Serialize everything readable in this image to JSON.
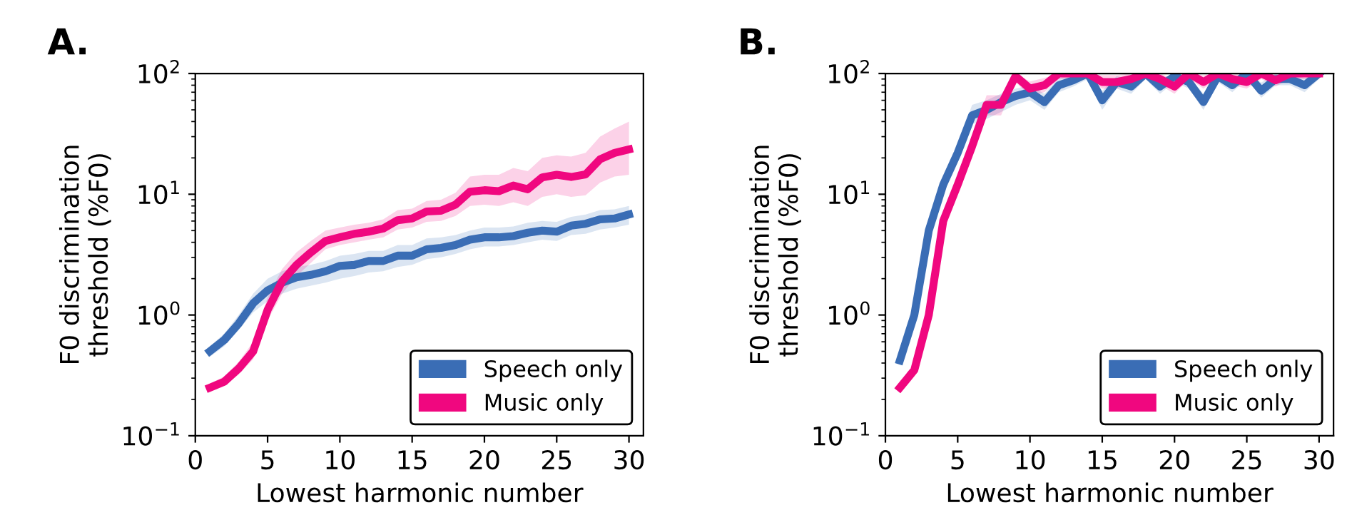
{
  "chart_data": [
    {
      "type": "line",
      "title": "A.",
      "xlabel": "Lowest harmonic number",
      "ylabel": "F0 discrimination\nthreshold (%F0)",
      "log": "y",
      "xlim": [
        0,
        31
      ],
      "ylim": [
        0.1,
        100
      ],
      "xticks": [
        0,
        5,
        10,
        15,
        20,
        25,
        30
      ],
      "yticks": [
        {
          "value": 0.1,
          "label": "10$^{−1}$"
        },
        {
          "value": 1,
          "label": "10$^{0}$"
        },
        {
          "value": 10,
          "label": "10$^{1}$"
        },
        {
          "value": 100,
          "label": "10$^{2}$"
        }
      ],
      "grid": false,
      "legend": "bottom right",
      "marker": "none",
      "line_style": "solid",
      "x": [
        1,
        2,
        3,
        4,
        5,
        6,
        7,
        8,
        9,
        10,
        11,
        12,
        13,
        14,
        15,
        16,
        17,
        18,
        19,
        20,
        21,
        22,
        23,
        24,
        25,
        26,
        27,
        28,
        29,
        30
      ],
      "series": [
        {
          "name": "Speech only",
          "color": "#3a6db5",
          "values": [
            0.5,
            0.62,
            0.85,
            1.25,
            1.6,
            1.85,
            2.05,
            2.15,
            2.3,
            2.55,
            2.6,
            2.8,
            2.8,
            3.1,
            3.1,
            3.5,
            3.6,
            3.8,
            4.2,
            4.4,
            4.4,
            4.5,
            4.8,
            5.0,
            4.9,
            5.5,
            5.7,
            6.2,
            6.3,
            6.8
          ],
          "lower": [
            0.45,
            0.55,
            0.75,
            1.05,
            1.3,
            1.5,
            1.65,
            1.75,
            1.85,
            2.0,
            2.1,
            2.25,
            2.3,
            2.5,
            2.6,
            2.9,
            3.0,
            3.2,
            3.5,
            3.7,
            3.7,
            3.8,
            4.0,
            4.2,
            4.1,
            4.6,
            4.7,
            5.1,
            5.3,
            5.6
          ],
          "upper": [
            0.55,
            0.7,
            1.0,
            1.5,
            2.0,
            2.3,
            2.5,
            2.6,
            2.8,
            3.1,
            3.2,
            3.4,
            3.4,
            3.8,
            3.8,
            4.3,
            4.4,
            4.6,
            5.0,
            5.3,
            5.3,
            5.4,
            5.8,
            6.0,
            5.9,
            6.5,
            6.8,
            7.4,
            7.5,
            8.0
          ]
        },
        {
          "name": "Music only",
          "color": "#f0077f",
          "values": [
            0.25,
            0.28,
            0.36,
            0.5,
            1.1,
            1.9,
            2.6,
            3.3,
            4.1,
            4.4,
            4.7,
            4.9,
            5.2,
            6.1,
            6.3,
            7.2,
            7.3,
            8.2,
            10.5,
            10.8,
            10.6,
            11.8,
            11.0,
            13.8,
            14.5,
            13.9,
            14.6,
            19.5,
            22,
            23.5
          ],
          "lower": [
            0.23,
            0.26,
            0.32,
            0.43,
            0.9,
            1.5,
            2.1,
            2.7,
            3.5,
            3.8,
            4.0,
            4.2,
            4.4,
            5.1,
            5.3,
            5.9,
            6.0,
            6.6,
            8.0,
            8.2,
            8.0,
            8.6,
            8.0,
            9.5,
            10.0,
            9.5,
            9.8,
            12.5,
            14.0,
            14.5
          ],
          "upper": [
            0.27,
            0.31,
            0.41,
            0.6,
            1.4,
            2.4,
            3.3,
            4.1,
            5.0,
            5.3,
            5.6,
            5.8,
            6.2,
            7.4,
            7.6,
            8.8,
            9.0,
            10.3,
            14.0,
            14.5,
            14.5,
            16.5,
            15.5,
            20.0,
            21.0,
            20.5,
            22.0,
            30.0,
            35.0,
            40.0
          ]
        }
      ]
    },
    {
      "type": "line",
      "title": "B.",
      "xlabel": "Lowest harmonic number",
      "ylabel": "F0 discrimination\nthreshold (%F0)",
      "log": "y",
      "xlim": [
        0,
        31
      ],
      "ylim": [
        0.1,
        100
      ],
      "xticks": [
        0,
        5,
        10,
        15,
        20,
        25,
        30
      ],
      "yticks": [
        {
          "value": 0.1,
          "label": "10$^{−1}$"
        },
        {
          "value": 1,
          "label": "10$^{0}$"
        },
        {
          "value": 10,
          "label": "10$^{1}$"
        },
        {
          "value": 100,
          "label": "10$^{2}$"
        }
      ],
      "grid": false,
      "legend": "bottom right",
      "marker": "none",
      "line_style": "solid",
      "x": [
        1,
        2,
        3,
        4,
        5,
        6,
        7,
        8,
        9,
        10,
        11,
        12,
        13,
        14,
        15,
        16,
        17,
        18,
        19,
        20,
        21,
        22,
        23,
        24,
        25,
        26,
        27,
        28,
        29,
        30
      ],
      "series": [
        {
          "name": "Speech only",
          "color": "#3a6db5",
          "values": [
            0.42,
            1.0,
            5,
            12,
            22,
            45,
            50,
            58,
            65,
            70,
            58,
            80,
            88,
            100,
            60,
            85,
            78,
            100,
            78,
            95,
            85,
            58,
            95,
            80,
            100,
            72,
            90,
            90,
            80,
            100
          ],
          "lower": [
            0.38,
            0.9,
            4.3,
            10,
            19,
            38,
            42,
            48,
            55,
            60,
            50,
            70,
            78,
            90,
            50,
            75,
            68,
            90,
            68,
            85,
            75,
            50,
            85,
            70,
            90,
            63,
            80,
            80,
            70,
            90
          ],
          "upper": [
            0.47,
            1.1,
            5.8,
            14,
            26,
            55,
            60,
            68,
            75,
            80,
            68,
            92,
            98,
            100,
            72,
            95,
            90,
            100,
            90,
            100,
            95,
            68,
            100,
            92,
            100,
            84,
            100,
            100,
            92,
            100
          ]
        },
        {
          "name": "Music only",
          "color": "#f0077f",
          "values": [
            0.25,
            0.35,
            1.0,
            6,
            12,
            25,
            55,
            55,
            95,
            75,
            80,
            100,
            100,
            100,
            85,
            85,
            90,
            100,
            90,
            78,
            100,
            85,
            100,
            90,
            85,
            100,
            88,
            100,
            100,
            100
          ],
          "lower": [
            0.23,
            0.32,
            0.9,
            5.2,
            10.5,
            22,
            45,
            45,
            85,
            65,
            70,
            90,
            90,
            90,
            75,
            75,
            80,
            90,
            80,
            68,
            90,
            75,
            90,
            80,
            75,
            90,
            78,
            90,
            90,
            90
          ],
          "upper": [
            0.27,
            0.39,
            1.15,
            7,
            14,
            29,
            66,
            66,
            100,
            86,
            92,
            100,
            100,
            100,
            97,
            97,
            100,
            100,
            100,
            90,
            100,
            97,
            100,
            100,
            97,
            100,
            100,
            100,
            100,
            100
          ]
        }
      ]
    }
  ]
}
